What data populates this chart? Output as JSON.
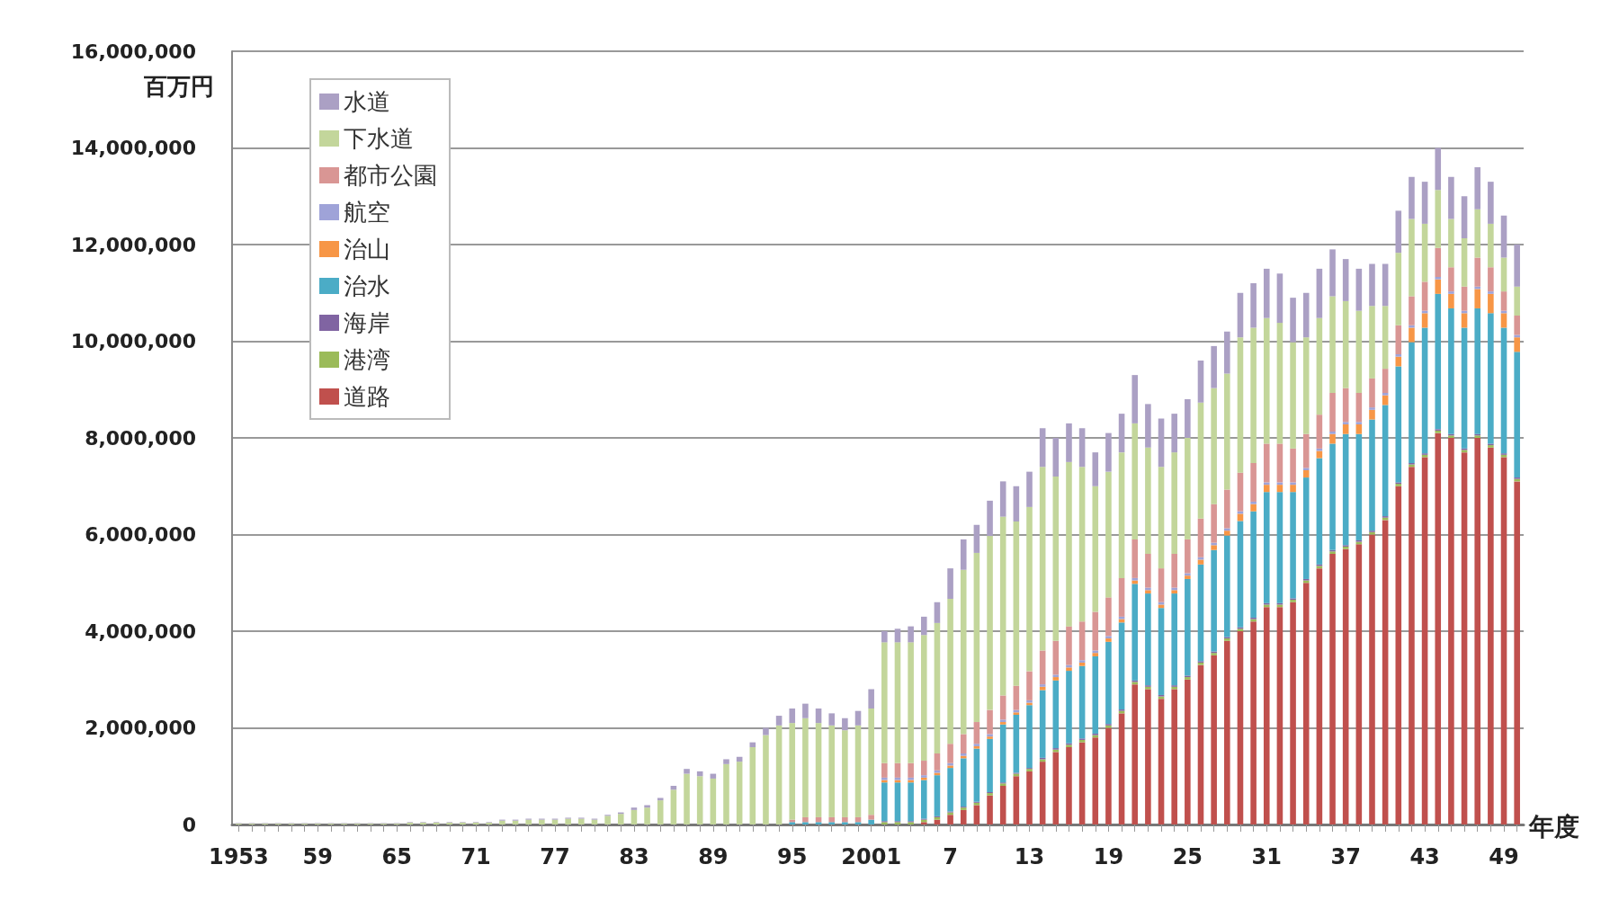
{
  "chart_data": {
    "type": "bar",
    "stacked": true,
    "ylabel": "百万円",
    "xlabel": "年度",
    "categories": [
      "1953",
      null,
      null,
      null,
      null,
      null,
      "59",
      null,
      null,
      null,
      null,
      null,
      "65",
      null,
      null,
      null,
      null,
      null,
      "71",
      null,
      null,
      null,
      null,
      null,
      "77",
      null,
      null,
      null,
      null,
      null,
      "83",
      null,
      null,
      null,
      null,
      null,
      "89",
      null,
      null,
      null,
      null,
      null,
      "95",
      null,
      null,
      null,
      null,
      null,
      "2001",
      null,
      null,
      null,
      null,
      null,
      "7",
      null,
      null,
      null,
      null,
      null,
      "13",
      null,
      null,
      null,
      null,
      null,
      "19",
      null,
      null,
      null,
      null,
      null,
      "25",
      null,
      null,
      null,
      null,
      null,
      "31",
      null,
      null,
      null,
      null,
      null,
      "37",
      null,
      null,
      null,
      null,
      null,
      "43",
      null,
      null,
      null,
      null,
      null,
      "49",
      null
    ],
    "ylim": [
      0,
      16000000
    ],
    "yticks": [
      {
        "value": 0,
        "label": "0"
      },
      {
        "value": 2000000,
        "label": "2,000,000"
      },
      {
        "value": 4000000,
        "label": "4,000,000"
      },
      {
        "value": 6000000,
        "label": "6,000,000"
      },
      {
        "value": 8000000,
        "label": "8,000,000"
      },
      {
        "value": 10000000,
        "label": "10,000,000"
      },
      {
        "value": 12000000,
        "label": "12,000,000"
      },
      {
        "value": 14000000,
        "label": "14,000,000"
      },
      {
        "value": 16000000,
        "label": "16,000,000"
      }
    ],
    "grid": "y",
    "legend": "top left",
    "series": [
      {
        "name": "道路",
        "color": "#c0504d",
        "values": [
          0,
          0,
          0,
          0,
          0,
          0,
          0,
          0,
          0,
          0,
          0,
          0,
          0,
          0,
          0,
          0,
          0,
          0,
          0,
          0,
          0,
          0,
          0,
          0,
          0,
          0,
          0,
          0,
          0,
          0,
          0,
          0,
          0,
          0,
          0,
          0,
          0,
          0,
          0,
          0,
          0,
          0,
          0,
          0,
          0,
          0,
          0,
          0,
          0,
          0,
          0,
          0,
          50000,
          100000,
          200000,
          300000,
          400000,
          600000,
          800000,
          1000000,
          1100000,
          1300000,
          1500000,
          1600000,
          1700000,
          1800000,
          2000000,
          2300000,
          2900000,
          2800000,
          2600000,
          2800000,
          3000000,
          3300000,
          3500000,
          3800000,
          4000000,
          4200000,
          4500000,
          4500000,
          4600000,
          5000000,
          5300000,
          5600000,
          5700000,
          5800000,
          6000000,
          6300000,
          7000000,
          7400000,
          7600000,
          8100000,
          8000000,
          7700000,
          8000000,
          7800000,
          7600000,
          7100000
        ]
      },
      {
        "name": "港湾",
        "color": "#9bbb59",
        "values": [
          0,
          0,
          0,
          0,
          0,
          0,
          0,
          0,
          0,
          0,
          0,
          0,
          0,
          0,
          0,
          0,
          0,
          0,
          0,
          0,
          0,
          0,
          0,
          0,
          0,
          0,
          0,
          0,
          0,
          0,
          0,
          0,
          0,
          0,
          0,
          0,
          0,
          0,
          0,
          0,
          0,
          0,
          0,
          0,
          0,
          0,
          0,
          0,
          0,
          50000,
          50000,
          50000,
          50000,
          50000,
          50000,
          50000,
          50000,
          50000,
          50000,
          50000,
          50000,
          50000,
          50000,
          50000,
          50000,
          50000,
          50000,
          50000,
          50000,
          50000,
          50000,
          50000,
          50000,
          50000,
          50000,
          50000,
          50000,
          50000,
          50000,
          50000,
          50000,
          50000,
          50000,
          50000,
          50000,
          50000,
          50000,
          50000,
          50000,
          50000,
          50000,
          50000,
          50000,
          50000,
          50000,
          50000,
          50000,
          50000
        ]
      },
      {
        "name": "海岸",
        "color": "#8064a2",
        "values": [
          0,
          0,
          0,
          0,
          0,
          0,
          0,
          0,
          0,
          0,
          0,
          0,
          0,
          0,
          0,
          0,
          0,
          0,
          0,
          0,
          0,
          0,
          0,
          0,
          0,
          0,
          0,
          0,
          0,
          0,
          0,
          0,
          0,
          0,
          0,
          0,
          0,
          0,
          0,
          0,
          0,
          0,
          0,
          0,
          0,
          0,
          0,
          0,
          0,
          20000,
          20000,
          20000,
          20000,
          20000,
          20000,
          20000,
          20000,
          20000,
          20000,
          20000,
          20000,
          30000,
          30000,
          30000,
          30000,
          30000,
          30000,
          30000,
          30000,
          30000,
          30000,
          30000,
          30000,
          30000,
          30000,
          30000,
          30000,
          30000,
          30000,
          30000,
          30000,
          30000,
          30000,
          30000,
          30000,
          30000,
          30000,
          30000,
          30000,
          30000,
          30000,
          30000,
          30000,
          30000,
          30000,
          30000,
          30000,
          30000
        ]
      },
      {
        "name": "治水",
        "color": "#4bacc6",
        "values": [
          0,
          0,
          0,
          0,
          0,
          0,
          0,
          0,
          0,
          0,
          0,
          0,
          0,
          0,
          0,
          0,
          0,
          0,
          0,
          0,
          0,
          0,
          0,
          0,
          0,
          0,
          0,
          0,
          0,
          0,
          0,
          0,
          0,
          0,
          0,
          0,
          0,
          0,
          0,
          0,
          0,
          0,
          50000,
          50000,
          50000,
          50000,
          50000,
          50000,
          100000,
          800000,
          800000,
          800000,
          800000,
          850000,
          900000,
          1000000,
          1100000,
          1100000,
          1200000,
          1200000,
          1300000,
          1400000,
          1400000,
          1500000,
          1500000,
          1600000,
          1700000,
          1800000,
          2000000,
          1900000,
          1800000,
          1900000,
          2000000,
          2000000,
          2100000,
          2100000,
          2200000,
          2200000,
          2300000,
          2300000,
          2200000,
          2100000,
          2200000,
          2200000,
          2300000,
          2200000,
          2300000,
          2300000,
          2400000,
          2500000,
          2600000,
          2800000,
          2600000,
          2500000,
          2600000,
          2700000,
          2600000,
          2600000
        ]
      },
      {
        "name": "治山",
        "color": "#f79646",
        "values": [
          0,
          0,
          0,
          0,
          0,
          0,
          0,
          0,
          0,
          0,
          0,
          0,
          0,
          0,
          0,
          0,
          0,
          0,
          0,
          0,
          0,
          0,
          0,
          0,
          0,
          0,
          0,
          0,
          0,
          0,
          0,
          0,
          0,
          0,
          0,
          0,
          0,
          0,
          0,
          0,
          0,
          0,
          0,
          0,
          0,
          0,
          0,
          0,
          0,
          50000,
          50000,
          50000,
          50000,
          50000,
          50000,
          50000,
          50000,
          50000,
          50000,
          50000,
          50000,
          70000,
          70000,
          70000,
          70000,
          70000,
          70000,
          70000,
          70000,
          70000,
          70000,
          70000,
          70000,
          100000,
          100000,
          100000,
          150000,
          150000,
          150000,
          150000,
          150000,
          150000,
          150000,
          200000,
          200000,
          200000,
          200000,
          200000,
          200000,
          300000,
          300000,
          300000,
          300000,
          300000,
          400000,
          400000,
          300000,
          300000
        ]
      },
      {
        "name": "航空",
        "color": "#9fa3d8",
        "values": [
          0,
          0,
          0,
          0,
          0,
          0,
          0,
          0,
          0,
          0,
          0,
          0,
          0,
          0,
          0,
          0,
          0,
          0,
          0,
          0,
          0,
          0,
          0,
          0,
          0,
          0,
          0,
          0,
          0,
          0,
          0,
          0,
          0,
          0,
          0,
          0,
          0,
          0,
          0,
          0,
          0,
          0,
          0,
          0,
          0,
          0,
          0,
          0,
          0,
          50000,
          50000,
          50000,
          50000,
          50000,
          50000,
          50000,
          50000,
          50000,
          50000,
          50000,
          50000,
          50000,
          50000,
          50000,
          50000,
          50000,
          50000,
          50000,
          50000,
          50000,
          50000,
          50000,
          50000,
          50000,
          50000,
          50000,
          50000,
          50000,
          50000,
          50000,
          50000,
          50000,
          50000,
          50000,
          50000,
          50000,
          50000,
          50000,
          50000,
          50000,
          50000,
          50000,
          50000,
          50000,
          50000,
          50000,
          50000,
          50000
        ]
      },
      {
        "name": "都市公園",
        "color": "#d99694",
        "values": [
          0,
          0,
          0,
          0,
          0,
          0,
          0,
          0,
          0,
          0,
          0,
          0,
          0,
          0,
          0,
          0,
          0,
          0,
          0,
          0,
          0,
          0,
          0,
          0,
          0,
          0,
          0,
          0,
          0,
          0,
          0,
          0,
          0,
          0,
          0,
          0,
          0,
          0,
          0,
          0,
          0,
          0,
          50000,
          100000,
          100000,
          100000,
          100000,
          100000,
          100000,
          300000,
          300000,
          300000,
          300000,
          350000,
          400000,
          400000,
          450000,
          500000,
          500000,
          500000,
          600000,
          700000,
          700000,
          800000,
          800000,
          800000,
          800000,
          800000,
          800000,
          700000,
          700000,
          700000,
          700000,
          800000,
          800000,
          800000,
          800000,
          800000,
          800000,
          800000,
          700000,
          700000,
          700000,
          800000,
          700000,
          600000,
          600000,
          500000,
          600000,
          600000,
          600000,
          600000,
          500000,
          500000,
          600000,
          500000,
          400000,
          400000
        ]
      },
      {
        "name": "下水道",
        "color": "#c3d69b",
        "values": [
          20000,
          20000,
          20000,
          20000,
          20000,
          20000,
          20000,
          20000,
          20000,
          20000,
          20000,
          20000,
          20000,
          40000,
          40000,
          40000,
          40000,
          40000,
          40000,
          40000,
          80000,
          80000,
          100000,
          100000,
          100000,
          120000,
          120000,
          100000,
          180000,
          220000,
          300000,
          350000,
          500000,
          720000,
          1050000,
          1000000,
          950000,
          1250000,
          1300000,
          1600000,
          1850000,
          2050000,
          2000000,
          2050000,
          1950000,
          1900000,
          1800000,
          1900000,
          2200000,
          2500000,
          2500000,
          2500000,
          2600000,
          2700000,
          3000000,
          3400000,
          3500000,
          3600000,
          3700000,
          3400000,
          3400000,
          3800000,
          3400000,
          3400000,
          3200000,
          2600000,
          2600000,
          2600000,
          2400000,
          2200000,
          2100000,
          2100000,
          2100000,
          2400000,
          2400000,
          2400000,
          2800000,
          2800000,
          2600000,
          2500000,
          2200000,
          2000000,
          2000000,
          2000000,
          1800000,
          1700000,
          1500000,
          1300000,
          1500000,
          1600000,
          1200000,
          1200000,
          1000000,
          1000000,
          1000000,
          900000,
          700000,
          600000
        ]
      },
      {
        "name": "水道",
        "color": "#aba0c4",
        "values": [
          10000,
          10000,
          10000,
          10000,
          10000,
          10000,
          10000,
          10000,
          10000,
          10000,
          10000,
          10000,
          10000,
          10000,
          10000,
          10000,
          10000,
          10000,
          10000,
          10000,
          20000,
          20000,
          20000,
          20000,
          20000,
          20000,
          20000,
          20000,
          20000,
          30000,
          50000,
          50000,
          50000,
          80000,
          100000,
          100000,
          100000,
          100000,
          100000,
          100000,
          150000,
          200000,
          300000,
          300000,
          300000,
          250000,
          250000,
          300000,
          400000,
          230000,
          280000,
          330000,
          380000,
          430000,
          630000,
          630000,
          580000,
          730000,
          730000,
          730000,
          730000,
          800000,
          800000,
          800000,
          800000,
          700000,
          800000,
          800000,
          1000000,
          900000,
          1000000,
          800000,
          800000,
          870000,
          870000,
          870000,
          920000,
          920000,
          1020000,
          1020000,
          920000,
          920000,
          1020000,
          970000,
          870000,
          870000,
          870000,
          870000,
          870000,
          870000,
          870000,
          870000,
          870000,
          870000,
          870000,
          870000,
          870000,
          870000
        ]
      }
    ]
  }
}
